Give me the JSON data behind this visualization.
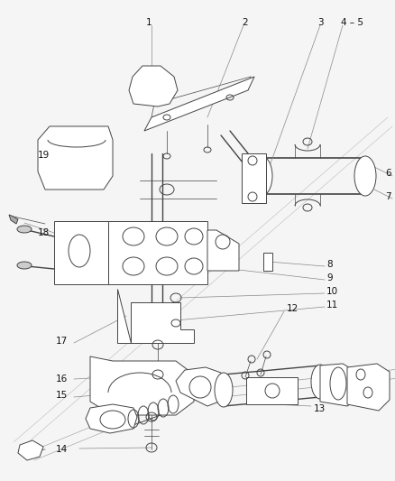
{
  "background_color": "#f5f5f5",
  "line_color": "#444444",
  "label_color": "#111111",
  "callout_color": "#888888",
  "fontsize": 7.5,
  "lw_main": 0.7,
  "lw_thin": 0.5,
  "lw_callout": 0.5
}
